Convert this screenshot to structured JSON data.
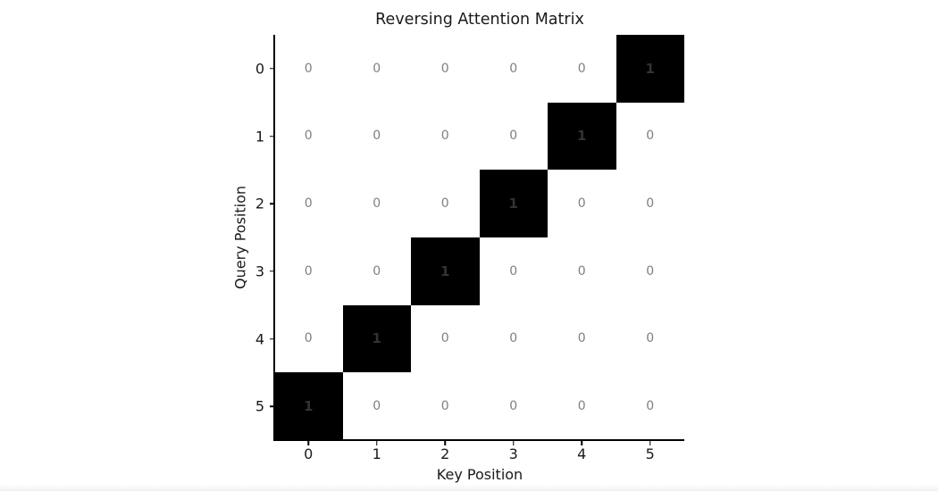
{
  "chart_data": {
    "type": "heatmap",
    "title": "Reversing Attention Matrix",
    "xlabel": "Key Position",
    "ylabel": "Query Position",
    "x_tick_labels": [
      "0",
      "1",
      "2",
      "3",
      "4",
      "5"
    ],
    "y_tick_labels": [
      "0",
      "1",
      "2",
      "3",
      "4",
      "5"
    ],
    "matrix": [
      [
        0,
        0,
        0,
        0,
        0,
        1
      ],
      [
        0,
        0,
        0,
        0,
        1,
        0
      ],
      [
        0,
        0,
        0,
        1,
        0,
        0
      ],
      [
        0,
        0,
        1,
        0,
        0,
        0
      ],
      [
        0,
        1,
        0,
        0,
        0,
        0
      ],
      [
        1,
        0,
        0,
        0,
        0,
        0
      ]
    ],
    "colors": {
      "zero_cell_bg": "#ffffff",
      "one_cell_bg": "#000000",
      "zero_cell_text": "#7f7f7f",
      "one_cell_text": "#333333",
      "axis": "#000000",
      "tick_label": "#1a1a1a"
    },
    "xlim": [
      -0.5,
      5.5
    ],
    "ylim": [
      5.5,
      -0.5
    ],
    "grid": false,
    "legend": "none",
    "spines": [
      "left",
      "bottom"
    ]
  }
}
